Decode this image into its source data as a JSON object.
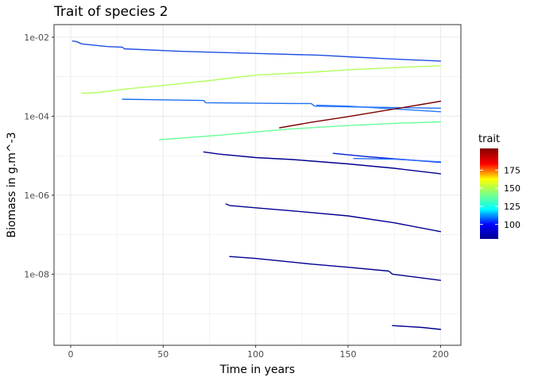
{
  "chart_data": {
    "type": "line",
    "title": "Trait of species 2",
    "xlabel": "Time in years",
    "ylabel": "Biomass in g.m^-3",
    "xlim": [
      -9,
      211
    ],
    "ylim_log10": [
      -9.8,
      -1.68
    ],
    "y_scale": "log10",
    "grid": true,
    "legend_position": "right",
    "x_ticks": [
      0,
      50,
      100,
      150,
      200
    ],
    "x_tick_labels": [
      "0",
      "50",
      "100",
      "150",
      "200"
    ],
    "y_ticks": [
      0.01,
      0.0001,
      1e-06,
      1e-08
    ],
    "y_tick_labels": [
      "1e-02",
      "1e-04",
      "1e-06",
      "1e-08"
    ],
    "legend": {
      "title": "trait",
      "min": 80,
      "max": 205,
      "ticks": [
        100,
        125,
        150,
        175
      ],
      "tick_labels": [
        "100",
        "125",
        "150",
        "175"
      ]
    },
    "series": [
      {
        "trait": 105,
        "color": "#1f4fe0",
        "points": [
          [
            1,
            0.008
          ],
          [
            3,
            0.0078
          ],
          [
            6,
            0.0068
          ],
          [
            20,
            0.0058
          ],
          [
            28,
            0.0056
          ],
          [
            29,
            0.0051
          ],
          [
            60,
            0.0044
          ],
          [
            100,
            0.0039
          ],
          [
            135,
            0.0035
          ],
          [
            150,
            0.0032
          ],
          [
            175,
            0.0028
          ],
          [
            200,
            0.0025
          ]
        ]
      },
      {
        "trait": 142,
        "color": "#b2ff5c",
        "points": [
          [
            6,
            0.00038
          ],
          [
            15,
            0.0004
          ],
          [
            30,
            0.00049
          ],
          [
            50,
            0.0006
          ],
          [
            75,
            0.0008
          ],
          [
            100,
            0.0011
          ],
          [
            130,
            0.0013
          ],
          [
            150,
            0.0015
          ],
          [
            175,
            0.0017
          ],
          [
            200,
            0.0019
          ]
        ]
      },
      {
        "trait": 110,
        "color": "#1e6ff0",
        "points": [
          [
            28,
            0.00027
          ],
          [
            50,
            0.00026
          ],
          [
            72,
            0.00025
          ],
          [
            73,
            0.00022
          ],
          [
            120,
            0.00021
          ],
          [
            130,
            0.00021
          ],
          [
            132,
            0.00018
          ],
          [
            160,
            0.00017
          ],
          [
            200,
            0.00016
          ]
        ]
      },
      {
        "trait": 113,
        "color": "#2878ff",
        "points": [
          [
            133,
            0.00019
          ],
          [
            150,
            0.00018
          ],
          [
            200,
            0.00013
          ]
        ]
      },
      {
        "trait": 205,
        "color": "#7f0000",
        "points": [
          [
            113,
            5.1e-05
          ],
          [
            130,
            7e-05
          ],
          [
            150,
            9.8e-05
          ],
          [
            170,
            0.00014
          ],
          [
            190,
            0.0002
          ],
          [
            200,
            0.00024
          ]
        ]
      },
      {
        "trait": 135,
        "color": "#66ff99",
        "points": [
          [
            48,
            2.55e-05
          ],
          [
            60,
            2.8e-05
          ],
          [
            80,
            3.3e-05
          ],
          [
            100,
            4e-05
          ],
          [
            120,
            4.8e-05
          ],
          [
            150,
            5.8e-05
          ],
          [
            175,
            6.6e-05
          ],
          [
            200,
            7.2e-05
          ]
        ]
      },
      {
        "trait": 82,
        "color": "#000090",
        "points": [
          [
            72,
            1.25e-05
          ],
          [
            80,
            1.1e-05
          ],
          [
            100,
            9e-06
          ],
          [
            120,
            8e-06
          ],
          [
            150,
            6.2e-06
          ],
          [
            175,
            4.8e-06
          ],
          [
            200,
            3.5e-06
          ]
        ]
      },
      {
        "trait": 92,
        "color": "#0020d0",
        "points": [
          [
            142,
            1.15e-05
          ],
          [
            160,
            9.5e-06
          ],
          [
            180,
            8e-06
          ],
          [
            200,
            6.8e-06
          ]
        ]
      },
      {
        "trait": 112,
        "color": "#2a6fff",
        "points": [
          [
            153,
            8.5e-06
          ],
          [
            175,
            8.2e-06
          ],
          [
            200,
            7e-06
          ]
        ]
      },
      {
        "trait": 82,
        "color": "#000090",
        "points": [
          [
            84,
            6e-07
          ],
          [
            86,
            5.5e-07
          ],
          [
            100,
            4.8e-07
          ],
          [
            120,
            4e-07
          ],
          [
            150,
            3e-07
          ],
          [
            175,
            2e-07
          ],
          [
            200,
            1.2e-07
          ]
        ]
      },
      {
        "trait": 82,
        "color": "#000090",
        "points": [
          [
            86,
            2.8e-08
          ],
          [
            100,
            2.5e-08
          ],
          [
            130,
            1.8e-08
          ],
          [
            150,
            1.5e-08
          ],
          [
            172,
            1.2e-08
          ],
          [
            174,
            1e-08
          ],
          [
            200,
            7e-09
          ]
        ]
      },
      {
        "trait": 82,
        "color": "#000090",
        "points": [
          [
            174,
            5e-10
          ],
          [
            190,
            4.5e-10
          ],
          [
            200,
            4e-10
          ]
        ]
      }
    ]
  }
}
